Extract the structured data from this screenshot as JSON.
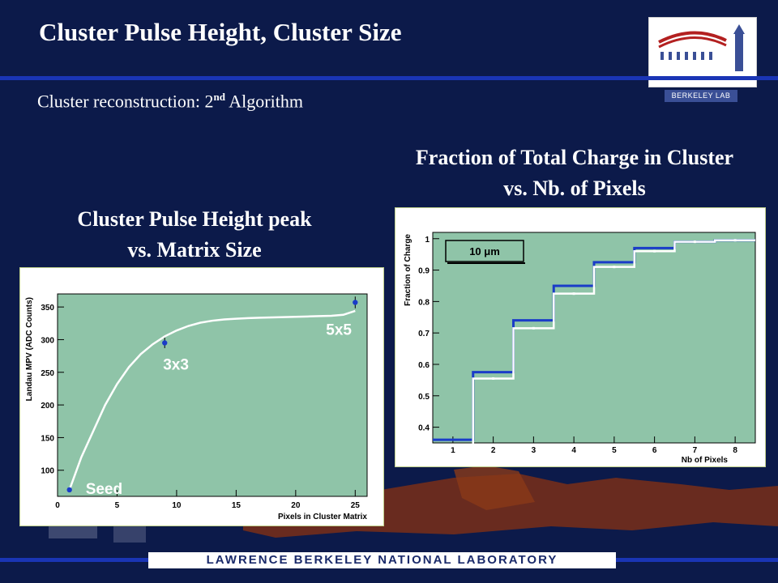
{
  "slide": {
    "title": "Cluster Pulse Height, Cluster Size",
    "subtitle_main": "Cluster reconstruction: 2",
    "subtitle_sup": "nd",
    "subtitle_rest": " Algorithm",
    "logo_label": "BERKELEY LAB",
    "footer": "LAWRENCE BERKELEY NATIONAL LABORATORY",
    "colors": {
      "background": "#0c1a4a",
      "rule": "#1a35b5",
      "plot_area": "#8fc4a8",
      "panel_border": "#bfcf8a"
    }
  },
  "left_panel": {
    "heading_line1": "Cluster Pulse Height peak",
    "heading_line2": "vs. Matrix Size"
  },
  "right_panel": {
    "heading_line1": "Fraction of Total Charge in Cluster",
    "heading_line2": "vs. Nb. of Pixels"
  },
  "chart_data": [
    {
      "type": "scatter",
      "xlabel": "Pixels in Cluster Matrix",
      "ylabel": "Landau MPV (ADC Counts)",
      "xlim": [
        0,
        26
      ],
      "ylim": [
        60,
        370
      ],
      "xticks": [
        0,
        5,
        10,
        15,
        20,
        25
      ],
      "yticks": [
        100,
        150,
        200,
        250,
        300,
        350
      ],
      "grid": false,
      "points": [
        {
          "label": "Seed",
          "x": 1,
          "y": 70,
          "err": 2
        },
        {
          "label": "3x3",
          "x": 9,
          "y": 295,
          "err": 8
        },
        {
          "label": "5x5",
          "x": 25,
          "y": 357,
          "err": 9
        }
      ],
      "fit_curve": {
        "x": [
          1,
          2,
          3,
          4,
          5,
          6,
          7,
          8,
          9,
          10,
          11,
          12,
          13,
          14,
          15,
          16,
          17,
          18,
          19,
          20,
          21,
          22,
          23,
          24,
          25
        ],
        "y": [
          70,
          120,
          160,
          200,
          232,
          258,
          278,
          293,
          305,
          314,
          321,
          326,
          329,
          331,
          332,
          333,
          333.5,
          334,
          334.5,
          335,
          335.5,
          336,
          336.5,
          338,
          344
        ]
      },
      "point_color": "#1a3cc8",
      "curve_color": "#ffffff"
    },
    {
      "type": "line",
      "step": true,
      "annotation": "10 μm",
      "xlabel": "Nb of Pixels",
      "ylabel": "Fraction of Charge",
      "xlim": [
        0.5,
        8.5
      ],
      "ylim": [
        0.35,
        1.02
      ],
      "xticks": [
        1,
        2,
        3,
        4,
        5,
        6,
        7,
        8
      ],
      "yticks": [
        0.4,
        0.5,
        0.6,
        0.7,
        0.8,
        0.9,
        1
      ],
      "grid": false,
      "x": [
        1,
        2,
        3,
        4,
        5,
        6,
        7,
        8
      ],
      "series": [
        {
          "color": "#1a3cc8",
          "values": [
            0.36,
            0.575,
            0.74,
            0.85,
            0.925,
            0.97,
            0.99,
            0.995
          ]
        },
        {
          "color": "#ffffff",
          "values": [
            0.34,
            0.555,
            0.715,
            0.825,
            0.91,
            0.96,
            0.99,
            0.995
          ]
        }
      ]
    }
  ]
}
